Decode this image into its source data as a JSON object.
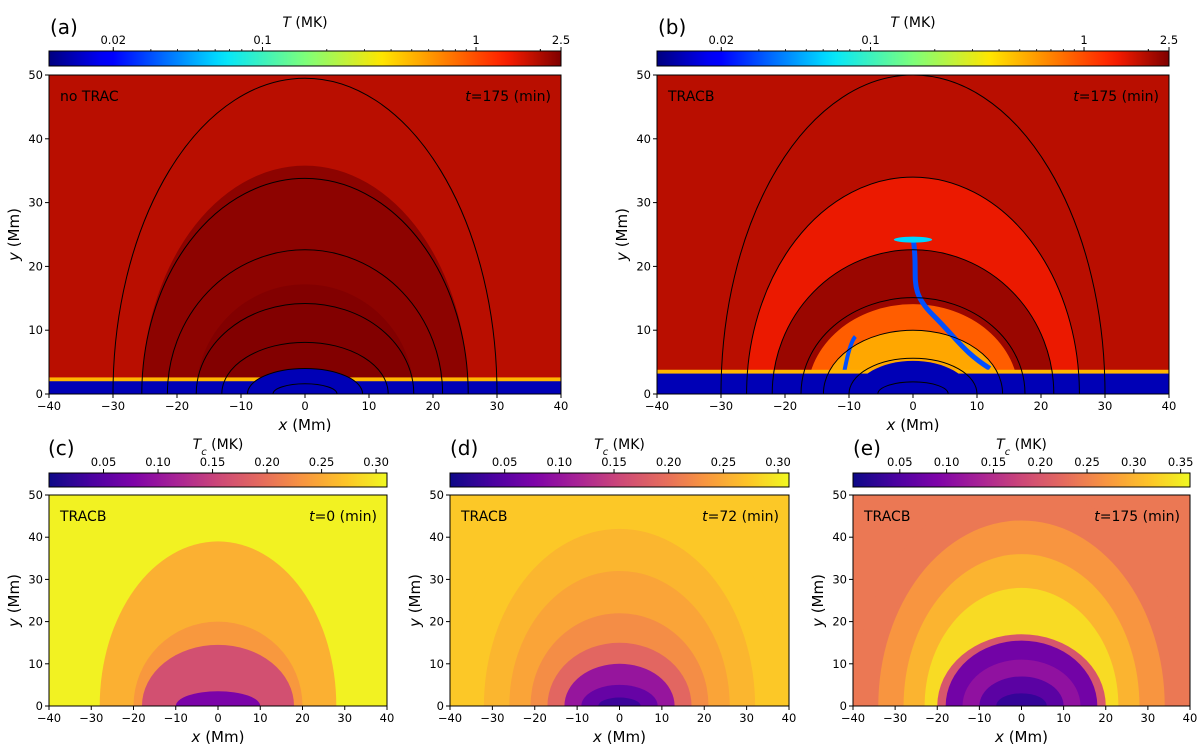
{
  "chart_data": [
    {
      "type": "heatmap",
      "panel_label": "(a)",
      "case_label": "no TRAC",
      "time_label": "=175 (min)",
      "time_symbol": "t",
      "quantity": "T",
      "colorbar": {
        "label": "(MK)",
        "symbol": "T",
        "scale": "log",
        "range": [
          0.01,
          2.5
        ],
        "ticks": [
          0.02,
          0.1,
          1,
          2.5
        ],
        "tick_labels": [
          "0.02",
          "0.1",
          "1",
          "2.5"
        ],
        "colormap": "jet"
      },
      "xlabel": "(Mm)",
      "xsymbol": "x",
      "ylabel": "(Mm)",
      "ysymbol": "y",
      "xlim": [
        -40,
        40
      ],
      "ylim": [
        0,
        50
      ],
      "xticks": [
        -40,
        -30,
        -20,
        -10,
        0,
        10,
        20,
        30,
        40
      ],
      "yticks": [
        0,
        10,
        20,
        30,
        40,
        50
      ],
      "field_line_apex_heights": [
        49.5,
        33.8,
        22.6,
        14.2,
        8.1,
        4.0,
        1.6
      ],
      "field_line_half_widths": [
        30,
        25.5,
        21.5,
        17,
        13,
        9,
        5
      ],
      "chromosphere_top": 2.0
    },
    {
      "type": "heatmap",
      "panel_label": "(b)",
      "case_label": "TRACB",
      "time_label": "=175 (min)",
      "time_symbol": "t",
      "quantity": "T",
      "colorbar": {
        "label": "(MK)",
        "symbol": "T",
        "scale": "log",
        "range": [
          0.01,
          2.5
        ],
        "ticks": [
          0.02,
          0.1,
          1,
          2.5
        ],
        "tick_labels": [
          "0.02",
          "0.1",
          "1",
          "2.5"
        ],
        "colormap": "jet"
      },
      "xlabel": "(Mm)",
      "xsymbol": "x",
      "ylabel": "(Mm)",
      "ysymbol": "y",
      "xlim": [
        -40,
        40
      ],
      "ylim": [
        0,
        50
      ],
      "xticks": [
        -40,
        -30,
        -20,
        -10,
        0,
        10,
        20,
        30,
        40
      ],
      "yticks": [
        0,
        10,
        20,
        30,
        40,
        50
      ],
      "field_line_apex_heights": [
        50,
        34,
        22.6,
        15.1,
        10,
        5.6,
        1.9
      ],
      "field_line_half_widths": [
        30,
        26,
        22,
        17.5,
        14,
        10,
        5.5
      ],
      "chromosphere_top": 3.2,
      "condensation_top": 24.5
    },
    {
      "type": "heatmap",
      "panel_label": "(c)",
      "case_label": "TRACB",
      "time_label": "=0 (min)",
      "time_symbol": "t",
      "quantity": "Tc",
      "colorbar": {
        "label": "(MK)",
        "symbol": "T",
        "subscript": "c",
        "scale": "linear",
        "range": [
          0.0,
          0.31
        ],
        "ticks": [
          0.05,
          0.1,
          0.15,
          0.2,
          0.25,
          0.3
        ],
        "tick_labels": [
          "0.05",
          "0.10",
          "0.15",
          "0.20",
          "0.25",
          "0.30"
        ],
        "colormap": "plasma"
      },
      "xlabel": "(Mm)",
      "xsymbol": "x",
      "ylabel": "(Mm)",
      "ysymbol": "y",
      "xlim": [
        -40,
        40
      ],
      "ylim": [
        0,
        50
      ],
      "xticks": [
        -40,
        -30,
        -20,
        -10,
        0,
        10,
        20,
        30,
        40
      ],
      "yticks": [
        0,
        10,
        20,
        30,
        40,
        50
      ],
      "regions": [
        {
          "half_width": 28,
          "apex": 39,
          "value": 0.255
        },
        {
          "half_width": 20,
          "apex": 20,
          "value": 0.235
        },
        {
          "half_width": 18,
          "apex": 14.5,
          "value": 0.165
        },
        {
          "half_width": 10,
          "apex": 3.5,
          "value": 0.075
        }
      ],
      "background_value": 0.305
    },
    {
      "type": "heatmap",
      "panel_label": "(d)",
      "case_label": "TRACB",
      "time_label": "=72 (min)",
      "time_symbol": "t",
      "quantity": "Tc",
      "colorbar": {
        "label": "(MK)",
        "symbol": "T",
        "subscript": "c",
        "scale": "linear",
        "range": [
          0.0,
          0.31
        ],
        "ticks": [
          0.05,
          0.1,
          0.15,
          0.2,
          0.25,
          0.3
        ],
        "tick_labels": [
          "0.05",
          "0.10",
          "0.15",
          "0.20",
          "0.25",
          "0.30"
        ],
        "colormap": "plasma"
      },
      "xlabel": "(Mm)",
      "xsymbol": "x",
      "ylabel": "(Mm)",
      "ysymbol": "y",
      "xlim": [
        -40,
        40
      ],
      "ylim": [
        0,
        50
      ],
      "xticks": [
        -40,
        -30,
        -20,
        -10,
        0,
        10,
        20,
        30,
        40
      ],
      "yticks": [
        0,
        10,
        20,
        30,
        40,
        50
      ],
      "regions": [
        {
          "half_width": 40,
          "apex": 50,
          "value": 0.275
        },
        {
          "half_width": 32,
          "apex": 42,
          "value": 0.26
        },
        {
          "half_width": 26,
          "apex": 32,
          "value": 0.245
        },
        {
          "half_width": 21,
          "apex": 22,
          "value": 0.225
        },
        {
          "half_width": 17,
          "apex": 15,
          "value": 0.19
        },
        {
          "half_width": 13,
          "apex": 10,
          "value": 0.1
        },
        {
          "half_width": 9,
          "apex": 5,
          "value": 0.06
        },
        {
          "half_width": 5,
          "apex": 2,
          "value": 0.03
        }
      ],
      "background_value": 0.275
    },
    {
      "type": "heatmap",
      "panel_label": "(e)",
      "case_label": "TRACB",
      "time_label": "=175 (min)",
      "time_symbol": "t",
      "quantity": "Tc",
      "colorbar": {
        "label": "(MK)",
        "symbol": "T",
        "subscript": "c",
        "scale": "linear",
        "range": [
          0.0,
          0.36
        ],
        "ticks": [
          0.05,
          0.1,
          0.15,
          0.2,
          0.25,
          0.3,
          0.35
        ],
        "tick_labels": [
          "0.05",
          "0.10",
          "0.15",
          "0.20",
          "0.25",
          "0.30",
          "0.35"
        ],
        "colormap": "plasma"
      },
      "xlabel": "(Mm)",
      "xsymbol": "x",
      "ylabel": "(Mm)",
      "ysymbol": "y",
      "xlim": [
        -40,
        40
      ],
      "ylim": [
        0,
        50
      ],
      "xticks": [
        -40,
        -30,
        -20,
        -10,
        0,
        10,
        20,
        30,
        40
      ],
      "yticks": [
        0,
        10,
        20,
        30,
        40,
        50
      ],
      "regions": [
        {
          "half_width": 40,
          "apex": 52,
          "value": 0.24
        },
        {
          "half_width": 34,
          "apex": 44,
          "value": 0.27
        },
        {
          "half_width": 28,
          "apex": 36,
          "value": 0.3
        },
        {
          "half_width": 23,
          "apex": 28,
          "value": 0.335
        },
        {
          "half_width": 20,
          "apex": 17,
          "value": 0.2
        },
        {
          "half_width": 18,
          "apex": 15.5,
          "value": 0.08
        },
        {
          "half_width": 14,
          "apex": 11,
          "value": 0.11
        },
        {
          "half_width": 10,
          "apex": 7,
          "value": 0.06
        },
        {
          "half_width": 6,
          "apex": 3,
          "value": 0.03
        }
      ],
      "background_value": 0.24
    }
  ]
}
